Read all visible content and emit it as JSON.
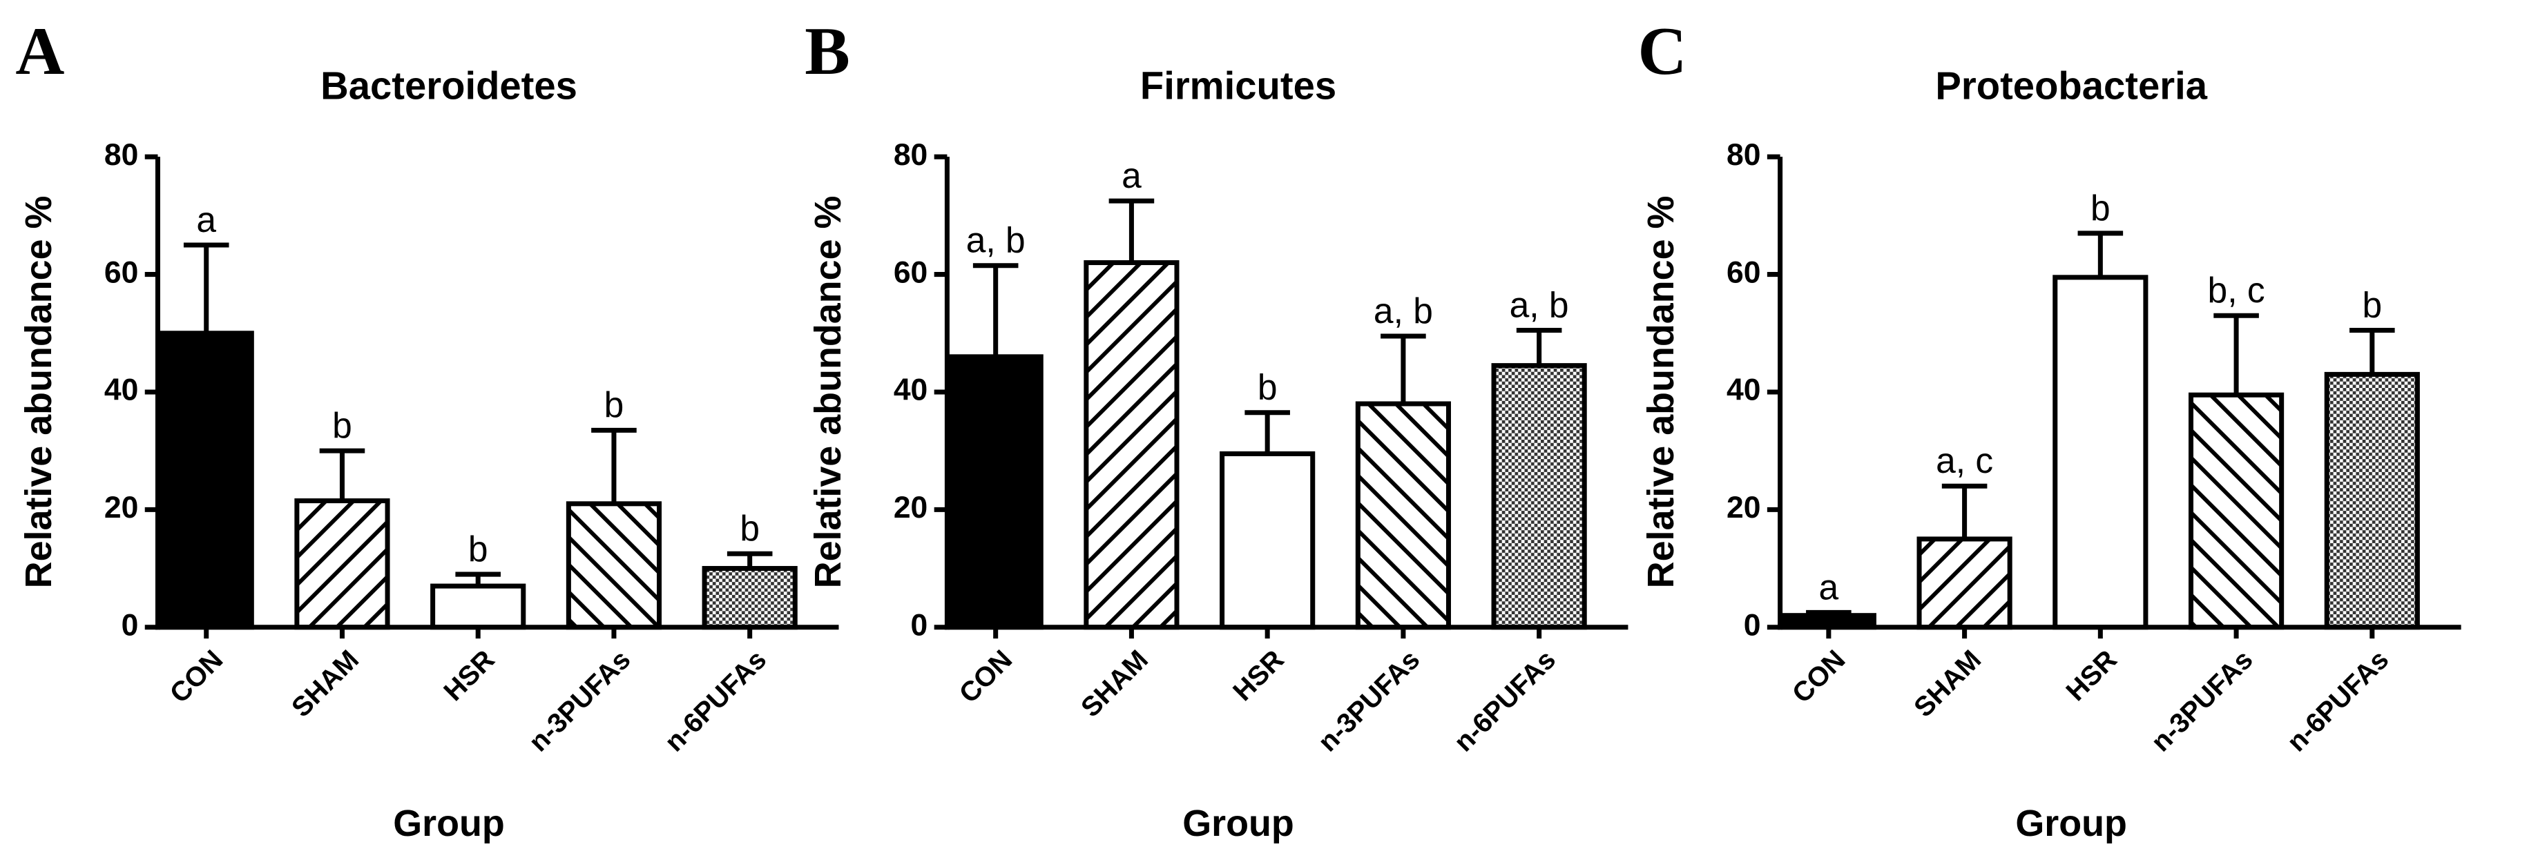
{
  "chart_data": [
    {
      "type": "bar",
      "panel": "A",
      "title": "Bacteroidetes",
      "ylabel": "Relative abundance %",
      "xlabel": "Group",
      "categories": [
        "CON",
        "SHAM",
        "HSR",
        "n-3PUFAs",
        "n-6PUFAs"
      ],
      "values": [
        50,
        21.5,
        7,
        21,
        10
      ],
      "errors": [
        15,
        8.5,
        2,
        12.5,
        2.5
      ],
      "annotations": [
        "a",
        "b",
        "b",
        "b",
        "b"
      ],
      "fill_patterns": [
        "solid",
        "hatch-right",
        "open",
        "hatch-left",
        "checker"
      ],
      "color": "#000000",
      "ylim": [
        0,
        80
      ],
      "yticks": [
        0,
        20,
        40,
        60,
        80
      ]
    },
    {
      "type": "bar",
      "panel": "B",
      "title": "Firmicutes",
      "ylabel": "Relative abundance %",
      "xlabel": "Group",
      "categories": [
        "CON",
        "SHAM",
        "HSR",
        "n-3PUFAs",
        "n-6PUFAs"
      ],
      "values": [
        46,
        62,
        29.5,
        38,
        44.5
      ],
      "errors": [
        15.5,
        10.5,
        7,
        11.5,
        6
      ],
      "annotations": [
        "a, b",
        "a",
        "b",
        "a, b",
        "a, b"
      ],
      "fill_patterns": [
        "solid",
        "hatch-right",
        "open",
        "hatch-left",
        "checker"
      ],
      "color": "#000000",
      "ylim": [
        0,
        80
      ],
      "yticks": [
        0,
        20,
        40,
        60,
        80
      ]
    },
    {
      "type": "bar",
      "panel": "C",
      "title": "Proteobacteria",
      "ylabel": "Relative abundance %",
      "xlabel": "Group",
      "categories": [
        "CON",
        "SHAM",
        "HSR",
        "n-3PUFAs",
        "n-6PUFAs"
      ],
      "values": [
        2,
        15,
        59.5,
        39.5,
        43
      ],
      "errors": [
        0.5,
        9,
        7.5,
        13.5,
        7.5
      ],
      "annotations": [
        "a",
        "a, c",
        "b",
        "b, c",
        "b"
      ],
      "fill_patterns": [
        "solid",
        "hatch-right",
        "open",
        "hatch-left",
        "checker"
      ],
      "color": "#000000",
      "ylim": [
        0,
        80
      ],
      "yticks": [
        0,
        20,
        40,
        60,
        80
      ]
    }
  ]
}
